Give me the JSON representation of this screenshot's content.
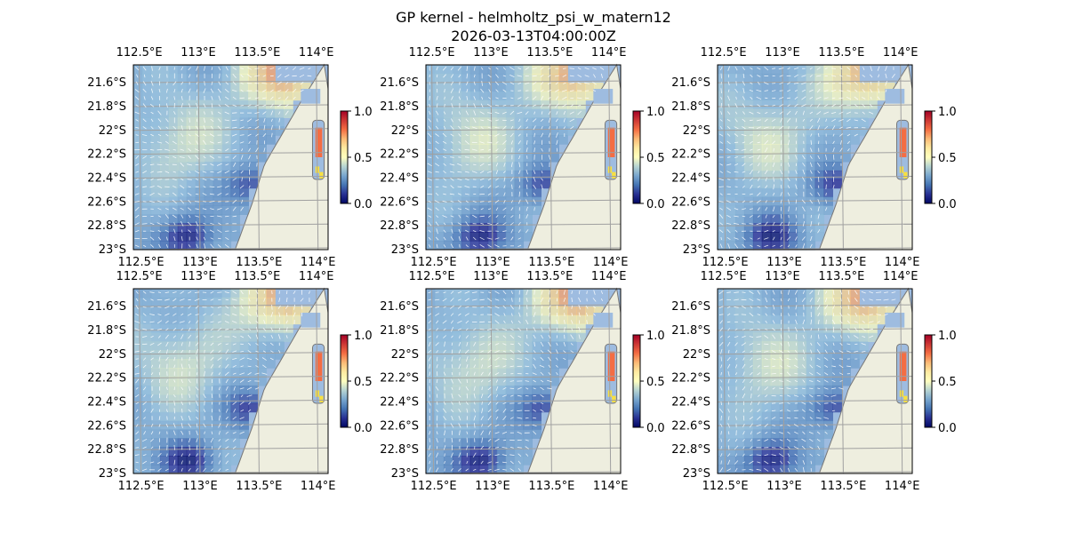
{
  "figure": {
    "title": "GP kernel - helmholtz_psi_w_matern12",
    "timestamp": "2026-03-13T04:00:00Z"
  },
  "chart_data": {
    "type": "heatmap",
    "panel_count": 6,
    "layout": "2 rows x 3 columns",
    "lon_ticks": [
      "112.5°E",
      "113°E",
      "113.5°E",
      "114°E"
    ],
    "lat_ticks": [
      "21.6°S",
      "21.8°S",
      "22°S",
      "22.2°S",
      "22.4°S",
      "22.6°S",
      "22.8°S",
      "23°S"
    ],
    "lon_range": [
      112.45,
      114.1
    ],
    "lat_range": [
      -23.0,
      -21.45
    ],
    "colorbar": {
      "ticks": [
        "0.0",
        "0.5",
        "1.0"
      ],
      "range": [
        0.0,
        1.0
      ],
      "colormap": "RdYlBu_r"
    },
    "overlay": "current vector arrows (white quiver)",
    "land_color": "#eeeedf",
    "ocean_mask_color": "#9ebce0",
    "gridlines": true
  }
}
